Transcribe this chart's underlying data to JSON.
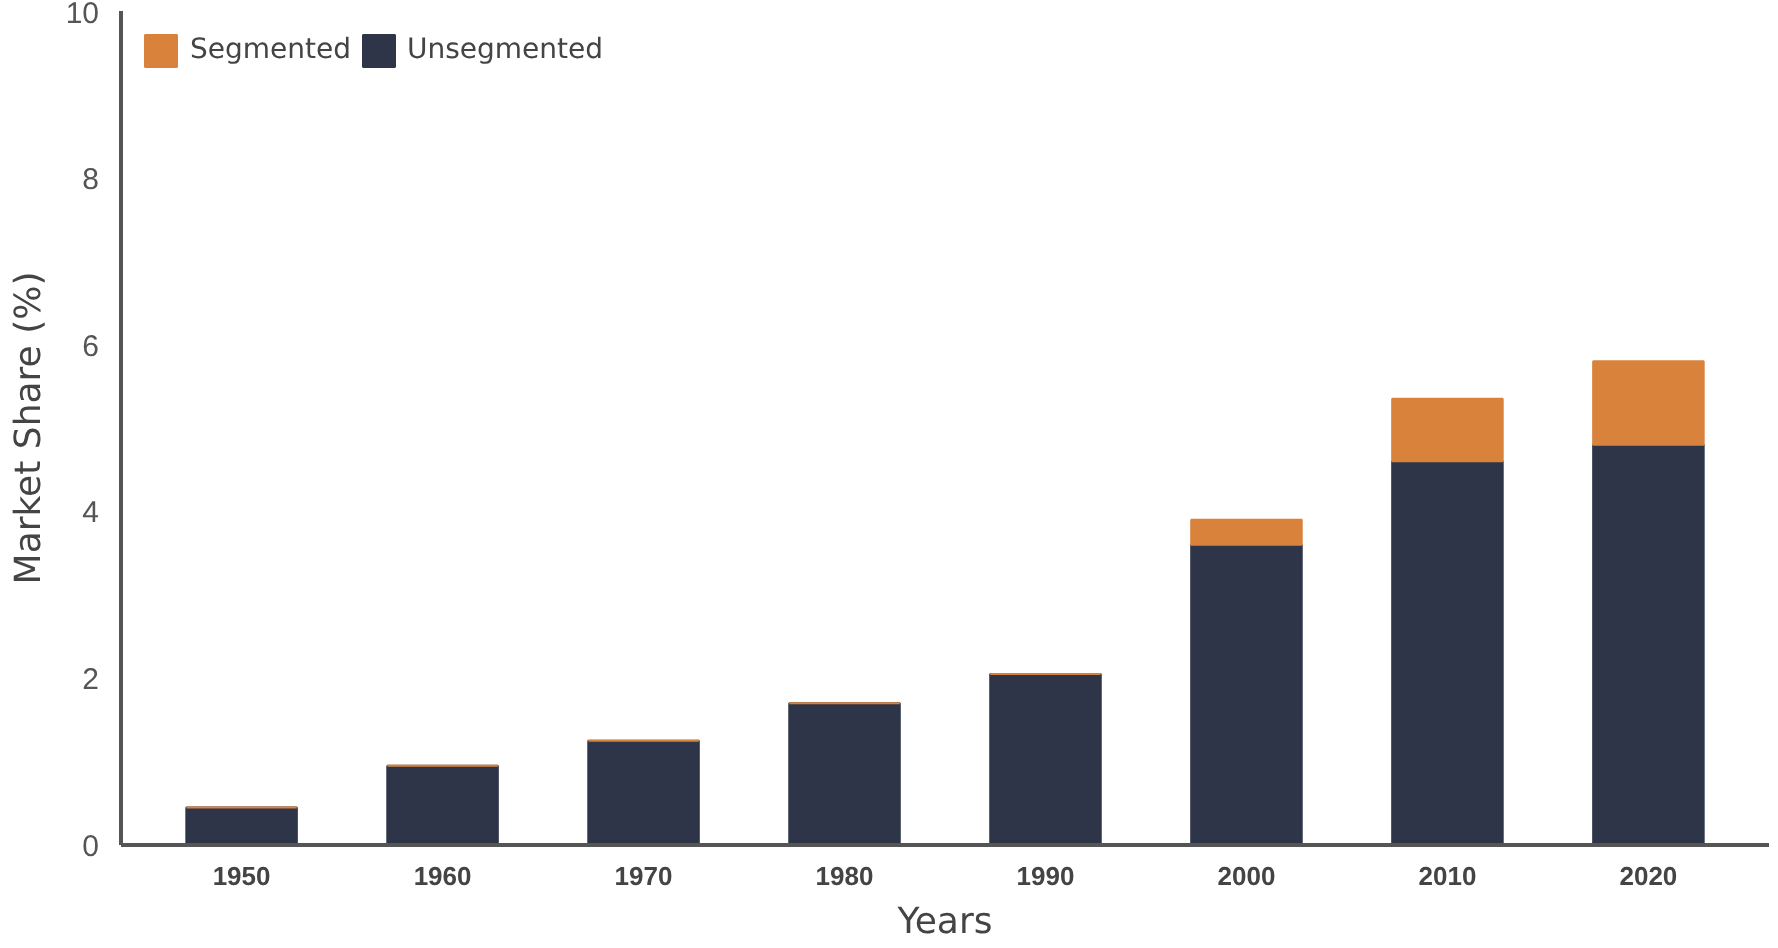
{
  "chart_data": {
    "type": "bar",
    "stacked": true,
    "xlabel": "Years",
    "ylabel": "Market Share (%)",
    "categories": [
      "1950",
      "1960",
      "1970",
      "1980",
      "1990",
      "2000",
      "2010",
      "2020"
    ],
    "series": [
      {
        "name": "Unsegmented",
        "color": "#2e3549",
        "values": [
          0.45,
          0.95,
          1.25,
          1.7,
          2.05,
          3.6,
          4.6,
          4.8
        ]
      },
      {
        "name": "Segmented",
        "color": "#d9823b",
        "values": [
          0,
          0,
          0,
          0,
          0,
          0.3,
          0.75,
          1.0
        ]
      }
    ],
    "ylim": [
      0,
      10
    ],
    "yticks": [
      0,
      2,
      4,
      6,
      8,
      10
    ],
    "grid": false,
    "legend": "top left"
  }
}
